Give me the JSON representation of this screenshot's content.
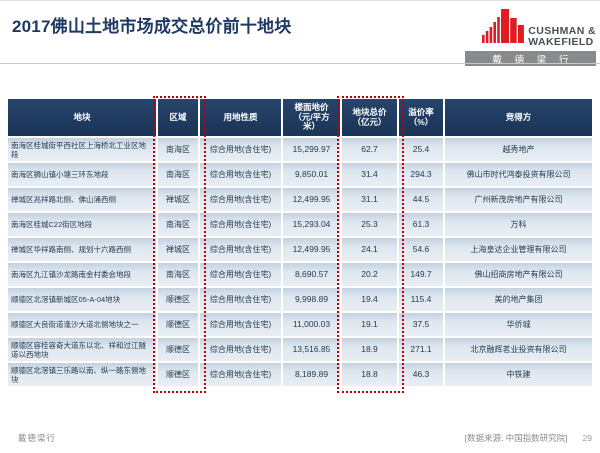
{
  "slide": {
    "title": "2017佛山土地市场成交总价前十地块"
  },
  "logo": {
    "icon": "cushman-wakefield-bars-icon",
    "name_line1": "CUSHMAN &",
    "name_line2": "WAKEFIELD",
    "name_cn": "戴 德 梁 行"
  },
  "footer": {
    "brand": "戴德梁行",
    "source": "[数据来源: 中国指数研究院]",
    "page": "29"
  },
  "colors": {
    "title_navy": "#1f3864",
    "table_header_bg": "#1f3a5f",
    "row_gradient_top": "#c3d1df",
    "row_gradient_bottom": "#e9eef4",
    "highlight_red": "#c00000",
    "logo_red": "#e11b22",
    "logo_gray": "#888b8d"
  },
  "table": {
    "headers": [
      "地块",
      "区域",
      "用地性质",
      "楼面地价\n（元/平方\n米）",
      "地块总价\n（亿元）",
      "溢价率\n（%）",
      "竞得方"
    ],
    "rows": [
      [
        "南海区桂城街平西社区上海桥北工业区地段",
        "南海区",
        "综合用地(含住宅)",
        "15,299.97",
        "62.7",
        "25.4",
        "越秀地产"
      ],
      [
        "南海区狮山镇小塘三环东地段",
        "南海区",
        "综合用地(含住宅)",
        "9,850.01",
        "31.4",
        "294.3",
        "佛山市时代鸿泰投资有限公司"
      ],
      [
        "禅城区兆祥路北侧、佛山涌西侧",
        "禅城区",
        "综合用地(含住宅)",
        "12,499.95",
        "31.1",
        "44.5",
        "广州新茂房地产有限公司"
      ],
      [
        "南海区桂城C22街区地段",
        "南海区",
        "综合用地(含住宅)",
        "15,293.04",
        "25.3",
        "61.3",
        "万科"
      ],
      [
        "禅城区华祥路南侧、规划十六路西侧",
        "禅城区",
        "综合用地(含住宅)",
        "12,499.95",
        "24.1",
        "54.6",
        "上海皇达企业管理有限公司"
      ],
      [
        "南海区九江镇沙龙路南金村委会地段",
        "南海区",
        "综合用地(含住宅)",
        "8,690.57",
        "20.2",
        "149.7",
        "佛山招商房地产有限公司"
      ],
      [
        "顺德区北滘镇新城区05-A-04地块",
        "顺德区",
        "综合用地(含住宅)",
        "9,998.89",
        "19.4",
        "115.4",
        "美的地产集团"
      ],
      [
        "顺德区大良街道逢沙大道北侧地块之一",
        "顺德区",
        "综合用地(含住宅)",
        "11,000.03",
        "19.1",
        "37.5",
        "华侨城"
      ],
      [
        "顺德区容桂容奇大道东以北、祥和过江隧道以西地块",
        "顺德区",
        "综合用地(含住宅)",
        "13,516.85",
        "18.9",
        "271.1",
        "北京融辉茗业投资有限公司"
      ],
      [
        "顺德区北滘镇三乐路以南、纵一路东侧地块",
        "顺德区",
        "综合用地(含住宅)",
        "8,189.89",
        "18.8",
        "46.3",
        "中铁建"
      ]
    ],
    "highlighted_columns": [
      "区域",
      "地块总价（亿元）"
    ]
  }
}
